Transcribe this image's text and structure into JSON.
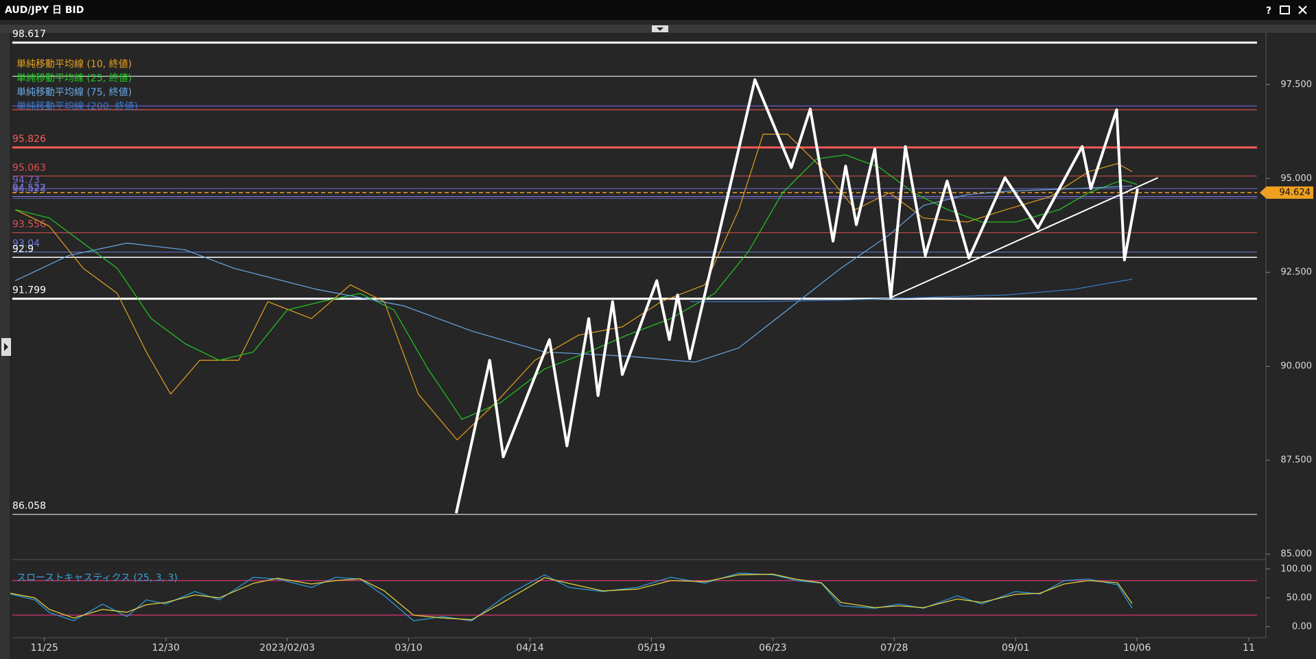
{
  "window": {
    "title": "AUD/JPY 日 BID",
    "help": "?"
  },
  "chart_data": [
    {
      "type": "line",
      "xlim": [
        -6.6,
        249.7
      ],
      "ylim": [
        84.91,
        98.82
      ],
      "xticks": [
        {
          "value": 0,
          "label": "11/25"
        },
        {
          "value": 25,
          "label": "12/30"
        },
        {
          "value": 50,
          "label": "2023/02/03"
        },
        {
          "value": 75,
          "label": "03/10"
        },
        {
          "value": 100,
          "label": "04/14"
        },
        {
          "value": 125,
          "label": "05/19"
        },
        {
          "value": 150,
          "label": "06/23"
        },
        {
          "value": 175,
          "label": "07/28"
        },
        {
          "value": 200,
          "label": "09/01"
        },
        {
          "value": 225,
          "label": "10/06"
        },
        {
          "value": 248,
          "label": "11"
        }
      ],
      "yticks": [
        {
          "value": 97.5,
          "label": "97.500"
        },
        {
          "value": 95,
          "label": "95.000"
        },
        {
          "value": 92.5,
          "label": "92.500"
        },
        {
          "value": 90,
          "label": "90.000"
        },
        {
          "value": 87.5,
          "label": "87.500"
        },
        {
          "value": 85,
          "label": "85.000"
        }
      ],
      "levels": [
        {
          "value": 98.617,
          "color": "#ffffff",
          "width": 3
        },
        {
          "value": 95.826,
          "color": "#ff5a5a",
          "width": 3
        },
        {
          "value": 95.063,
          "color": "#e05050",
          "width": 1
        },
        {
          "value": 94.73,
          "color": "#7a6ad8",
          "width": 1
        },
        {
          "value": 94.522,
          "color": "#8a7ae0",
          "width": 1
        },
        {
          "value": 94.474,
          "color": "#6a6ac8",
          "width": 1
        },
        {
          "value": 93.556,
          "color": "#e05050",
          "width": 1
        },
        {
          "value": 93.04,
          "color": "#6a7ae0",
          "width": 1
        },
        {
          "value": 92.9,
          "color": "#ffffff",
          "width": 1.5
        },
        {
          "value": 91.799,
          "color": "#ffffff",
          "width": 3
        },
        {
          "value": 86.058,
          "color": "#ffffff",
          "width": 1
        }
      ],
      "lines": [
        {
          "value": 97.72,
          "color": "#d8d8d8"
        },
        {
          "value": 96.93,
          "color": "#6a5ad0"
        },
        {
          "value": 96.83,
          "color": "#e05050"
        }
      ],
      "current": {
        "value": 94.624,
        "color": "#f0a020"
      },
      "series": [
        {
          "name": "単純移動平均線 (10, 終値)",
          "color": "#e8a020",
          "width": 1.2,
          "x": [
            -6,
            1,
            8,
            15,
            21,
            26,
            32,
            40,
            46,
            55,
            63,
            70,
            77,
            85,
            93,
            101,
            110,
            119,
            127,
            136,
            143,
            148,
            153,
            160,
            167,
            174,
            181,
            190,
            198,
            207,
            215,
            221,
            224
          ],
          "values": [
            94.17,
            93.73,
            92.61,
            91.94,
            90.38,
            89.26,
            90.16,
            90.16,
            91.72,
            91.27,
            92.17,
            91.72,
            89.26,
            88.04,
            89.04,
            90.16,
            90.83,
            91.05,
            91.72,
            92.17,
            94.17,
            96.18,
            96.18,
            95.29,
            94.17,
            94.62,
            93.95,
            93.84,
            94.17,
            94.51,
            95.18,
            95.4,
            95.18
          ]
        },
        {
          "name": "単純移動平均線 (25, 終値)",
          "color": "#22cc22",
          "width": 1.2,
          "x": [
            -6,
            1,
            8,
            15,
            22,
            29,
            36,
            43,
            50,
            57,
            65,
            72,
            79,
            86,
            94,
            103,
            112,
            120,
            129,
            138,
            145,
            152,
            159,
            165,
            172,
            179,
            186,
            193,
            200,
            209,
            215,
            222,
            225
          ],
          "values": [
            94.17,
            93.95,
            93.28,
            92.61,
            91.27,
            90.6,
            90.16,
            90.38,
            91.5,
            91.72,
            91.94,
            91.5,
            89.93,
            88.59,
            89.04,
            89.93,
            90.38,
            90.83,
            91.27,
            91.94,
            93.06,
            94.62,
            95.52,
            95.63,
            95.29,
            94.62,
            94.17,
            93.84,
            93.84,
            94.17,
            94.62,
            94.96,
            94.84
          ]
        },
        {
          "name": "単純移動平均線 (75, 終値)",
          "color": "#6aa8e8",
          "width": 1.2,
          "x": [
            -6,
            5,
            17,
            29,
            39,
            56,
            74,
            88,
            103,
            120,
            134,
            143,
            153,
            164,
            174,
            181,
            190,
            198,
            212,
            224
          ],
          "values": [
            92.28,
            92.95,
            93.28,
            93.1,
            92.61,
            92.05,
            91.61,
            90.94,
            90.38,
            90.27,
            90.11,
            90.49,
            91.5,
            92.61,
            93.5,
            94.28,
            94.57,
            94.66,
            94.73,
            94.8
          ]
        },
        {
          "name": "単純移動平均線 (200, 終値)",
          "color": "#3a78c8",
          "width": 1.2,
          "x": [
            133,
            147,
            164,
            181,
            198,
            212,
            219,
            224
          ],
          "values": [
            91.72,
            91.72,
            91.76,
            91.83,
            91.9,
            92.05,
            92.21,
            92.32
          ]
        },
        {
          "color": "#ffffff",
          "width": 4,
          "x": [
            84.8,
            91.7,
            94.5,
            104.0,
            107.6,
            112.1,
            114.0,
            117.0,
            119.0,
            126.1,
            128.7,
            130.4,
            132.9,
            146.3,
            153.8,
            157.7,
            162.4,
            165.0,
            167.2,
            171.0,
            174.3,
            177.3,
            181.4,
            185.9,
            190.4,
            197.8,
            204.6,
            213.7,
            215.5,
            220.8,
            222.4,
            225.1
          ],
          "values": [
            86.09,
            90.16,
            87.59,
            90.71,
            87.88,
            91.27,
            89.22,
            91.72,
            89.78,
            92.28,
            90.71,
            91.9,
            90.2,
            97.63,
            95.29,
            96.85,
            93.33,
            95.33,
            93.77,
            95.78,
            91.83,
            95.85,
            92.95,
            94.93,
            92.88,
            95.02,
            93.68,
            95.85,
            94.73,
            96.83,
            92.83,
            94.73
          ]
        },
        {
          "color": "#ffffff",
          "width": 2,
          "x": [
            174.3,
            229.3
          ],
          "values": [
            91.83,
            95.02
          ]
        }
      ]
    },
    {
      "type": "line",
      "title": "スローストキャスティクス (25, 3, 3)",
      "xlim": [
        -6.6,
        249.7
      ],
      "ylim": [
        -14.5,
        111.6
      ],
      "yticks": [
        {
          "value": 100,
          "label": "100.00"
        },
        {
          "value": 50,
          "label": "50.00"
        },
        {
          "value": 0,
          "label": "0.00"
        }
      ],
      "levels_plain": [
        {
          "value": 80,
          "color": "#c0306a"
        },
        {
          "value": 20,
          "color": "#c0306a"
        }
      ],
      "series": [
        {
          "color": "#2a9ad8",
          "width": 1.3,
          "x": [
            -7,
            -2,
            1,
            6,
            12,
            17,
            21,
            25,
            31,
            36,
            43,
            48,
            55,
            60,
            65,
            70,
            76,
            82,
            88,
            95,
            103,
            108,
            115,
            122,
            129,
            136,
            143,
            150,
            155,
            160,
            164,
            171,
            176,
            181,
            188,
            193,
            200,
            205,
            210,
            215,
            221,
            224
          ],
          "values": [
            56.5,
            46.4,
            24.6,
            10.1,
            39.1,
            17.4,
            46.4,
            39.1,
            60.9,
            46.4,
            85.5,
            82.6,
            68.1,
            85.5,
            82.6,
            53.6,
            10.1,
            17.4,
            10.1,
            53.6,
            89.9,
            68.1,
            60.9,
            68.1,
            85.5,
            75.4,
            92.8,
            89.9,
            79.7,
            75.4,
            36.2,
            31.9,
            39.1,
            31.9,
            53.6,
            39.1,
            60.9,
            56.5,
            79.7,
            82.6,
            72.5,
            31.9
          ]
        },
        {
          "color": "#e0d040",
          "width": 1.3,
          "x": [
            -7,
            -2,
            1,
            6,
            12,
            17,
            21,
            25,
            31,
            36,
            43,
            48,
            55,
            60,
            65,
            70,
            76,
            82,
            88,
            95,
            103,
            108,
            115,
            122,
            129,
            136,
            143,
            150,
            155,
            160,
            164,
            171,
            176,
            181,
            188,
            193,
            200,
            205,
            210,
            215,
            221,
            224
          ],
          "values": [
            58,
            50,
            30,
            15,
            30,
            25,
            38,
            42,
            55,
            50,
            75,
            84,
            74,
            80,
            83,
            62,
            20,
            15,
            12,
            45,
            85,
            75,
            62,
            65,
            80,
            78,
            90,
            91,
            82,
            76,
            42,
            33,
            36,
            33,
            48,
            42,
            56,
            58,
            74,
            80,
            76,
            40
          ]
        }
      ]
    }
  ]
}
